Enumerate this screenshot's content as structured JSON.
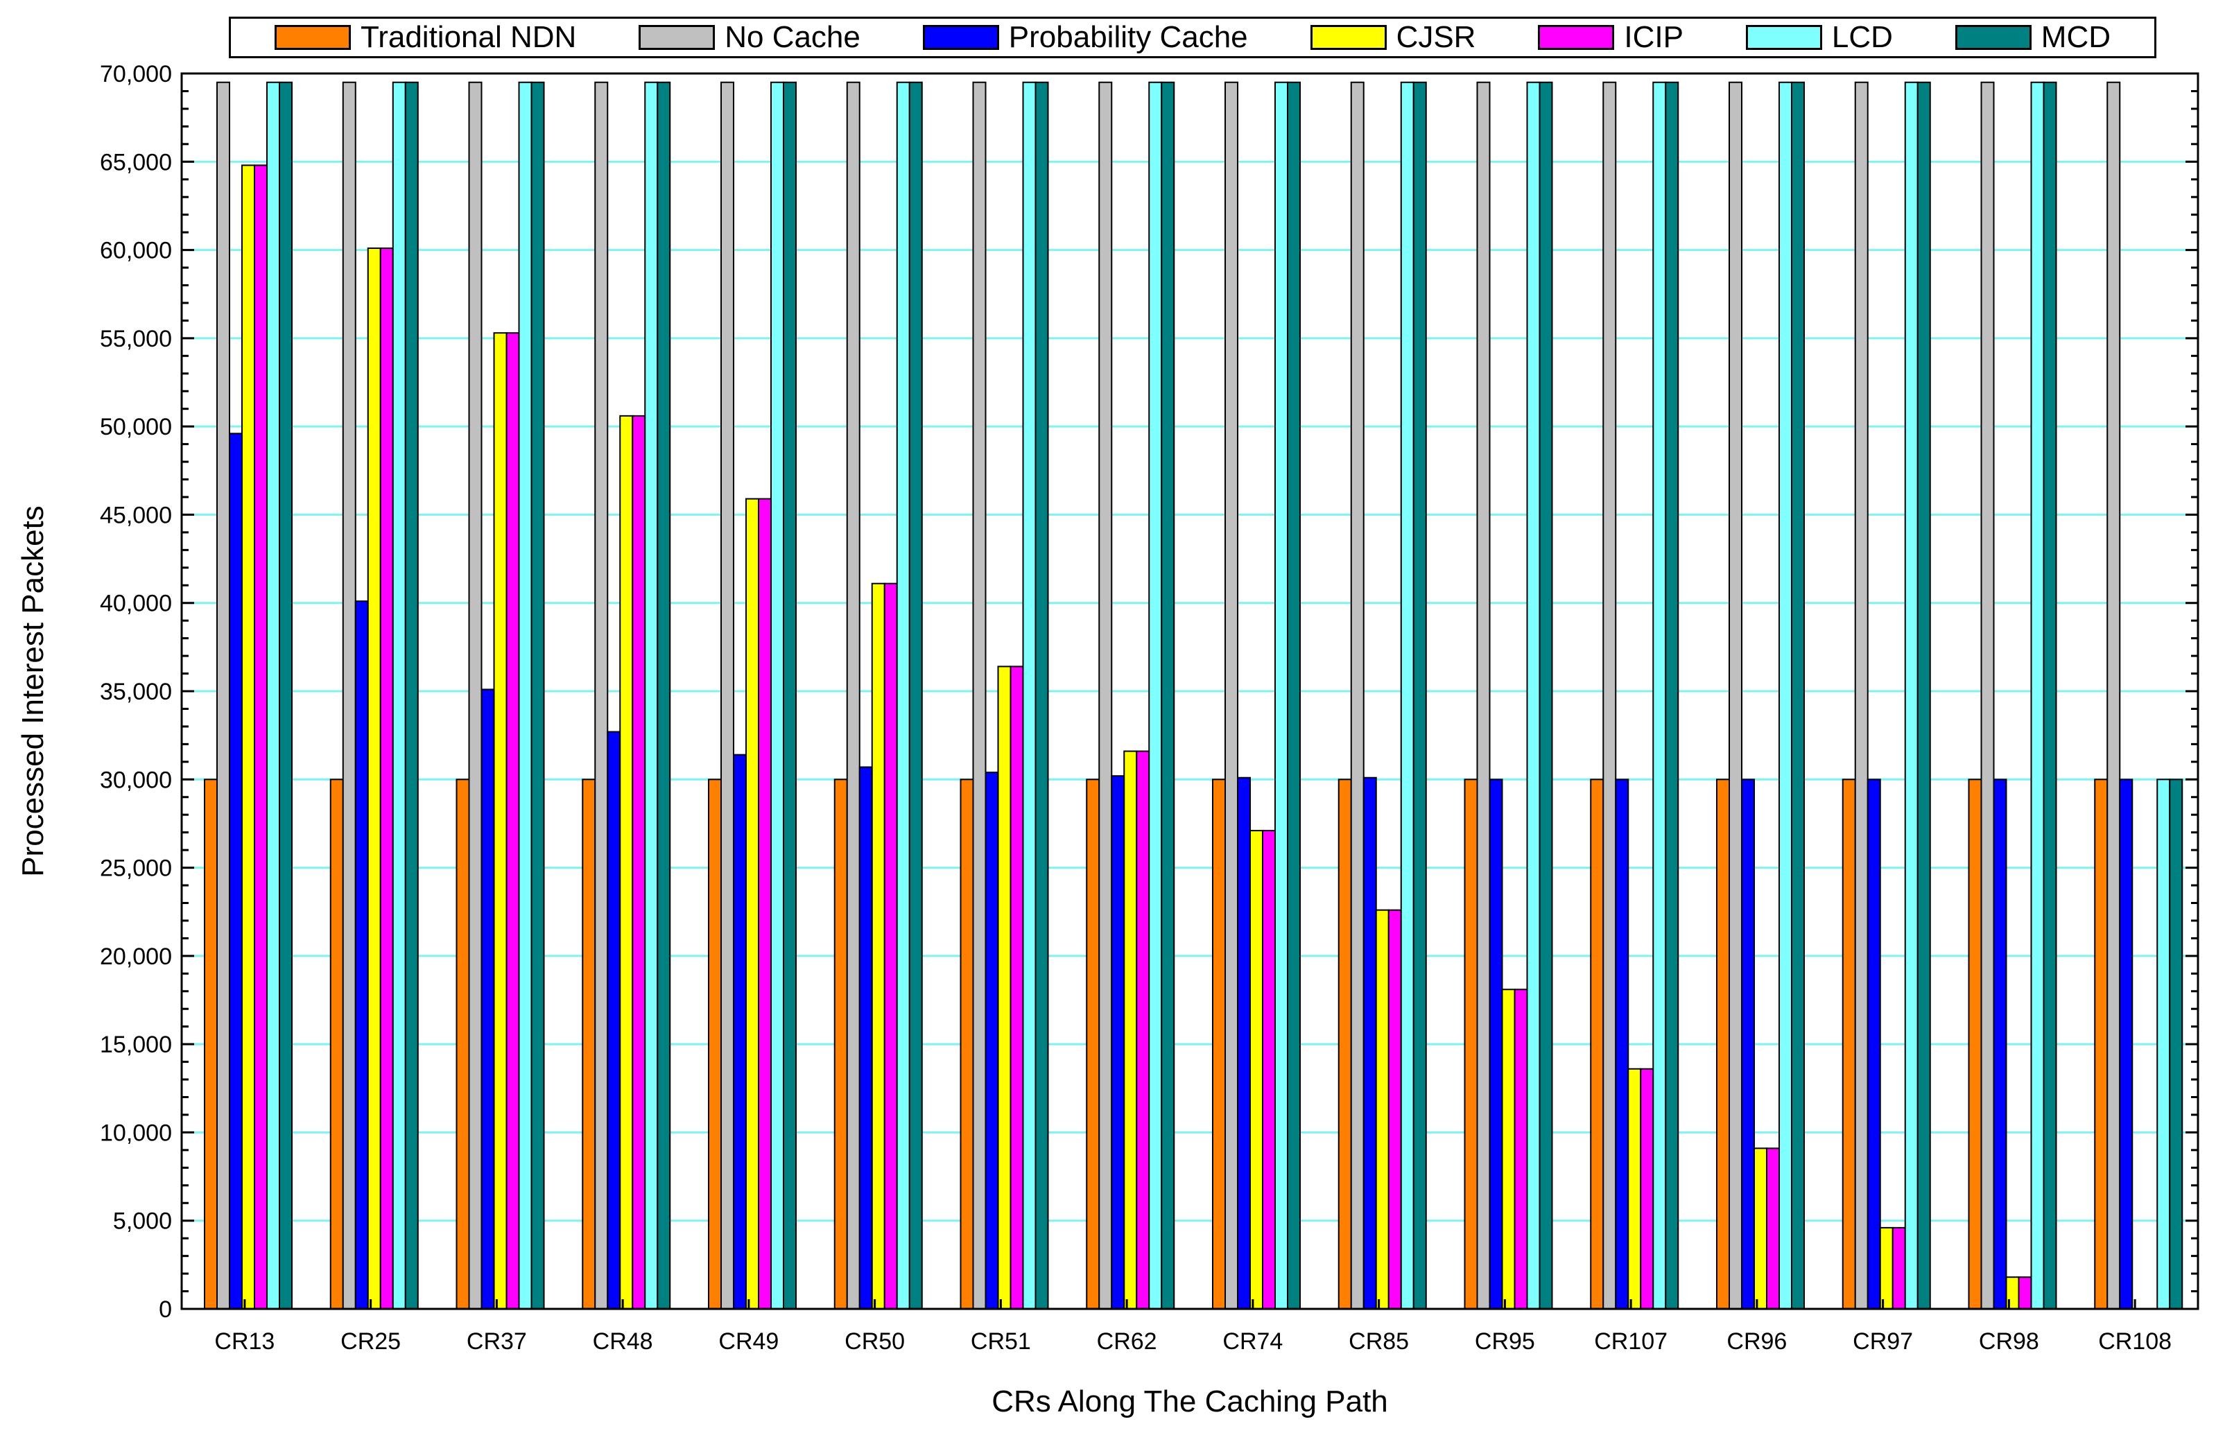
{
  "chart_data": {
    "type": "bar",
    "title": "",
    "xlabel": "CRs Along The Caching Path",
    "ylabel": "Processed Interest Packets",
    "ylim": [
      0,
      70000
    ],
    "ytick_step": 5000,
    "minor_step": 1000,
    "ytick_labels": [
      "0",
      "5,000",
      "10,000",
      "15,000",
      "20,000",
      "25,000",
      "30,000",
      "35,000",
      "40,000",
      "45,000",
      "50,000",
      "55,000",
      "60,000",
      "65,000",
      "70,000"
    ],
    "grid": true,
    "legend_position": "top",
    "categories": [
      "CR13",
      "CR25",
      "CR37",
      "CR48",
      "CR49",
      "CR50",
      "CR51",
      "CR62",
      "CR74",
      "CR85",
      "CR95",
      "CR107",
      "CR96",
      "CR97",
      "CR98",
      "CR108"
    ],
    "series": [
      {
        "name": "Traditional NDN",
        "color": "#FF8000",
        "values": [
          30000,
          30000,
          30000,
          30000,
          30000,
          30000,
          30000,
          30000,
          30000,
          30000,
          30000,
          30000,
          30000,
          30000,
          30000,
          30000
        ]
      },
      {
        "name": "No Cache",
        "color": "#C0C0C0",
        "values": [
          69500,
          69500,
          69500,
          69500,
          69500,
          69500,
          69500,
          69500,
          69500,
          69500,
          69500,
          69500,
          69500,
          69500,
          69500,
          69500
        ]
      },
      {
        "name": "Probability Cache",
        "color": "#0000FF",
        "values": [
          49600,
          40100,
          35100,
          32700,
          31400,
          30700,
          30400,
          30200,
          30100,
          30100,
          30000,
          30000,
          30000,
          30000,
          30000,
          30000
        ]
      },
      {
        "name": "CJSR",
        "color": "#FFFF00",
        "values": [
          64800,
          60100,
          55300,
          50600,
          45900,
          41100,
          36400,
          31600,
          27100,
          22600,
          18100,
          13600,
          9100,
          4600,
          1800,
          0
        ]
      },
      {
        "name": "ICIP",
        "color": "#FF00FF",
        "values": [
          64800,
          60100,
          55300,
          50600,
          45900,
          41100,
          36400,
          31600,
          27100,
          22600,
          18100,
          13600,
          9100,
          4600,
          1800,
          0
        ]
      },
      {
        "name": "LCD",
        "color": "#80FFFF",
        "values": [
          69500,
          69500,
          69500,
          69500,
          69500,
          69500,
          69500,
          69500,
          69500,
          69500,
          69500,
          69500,
          69500,
          69500,
          69500,
          30000
        ]
      },
      {
        "name": "MCD",
        "color": "#008080",
        "values": [
          69500,
          69500,
          69500,
          69500,
          69500,
          69500,
          69500,
          69500,
          69500,
          69500,
          69500,
          69500,
          69500,
          69500,
          69500,
          30000
        ]
      }
    ]
  }
}
